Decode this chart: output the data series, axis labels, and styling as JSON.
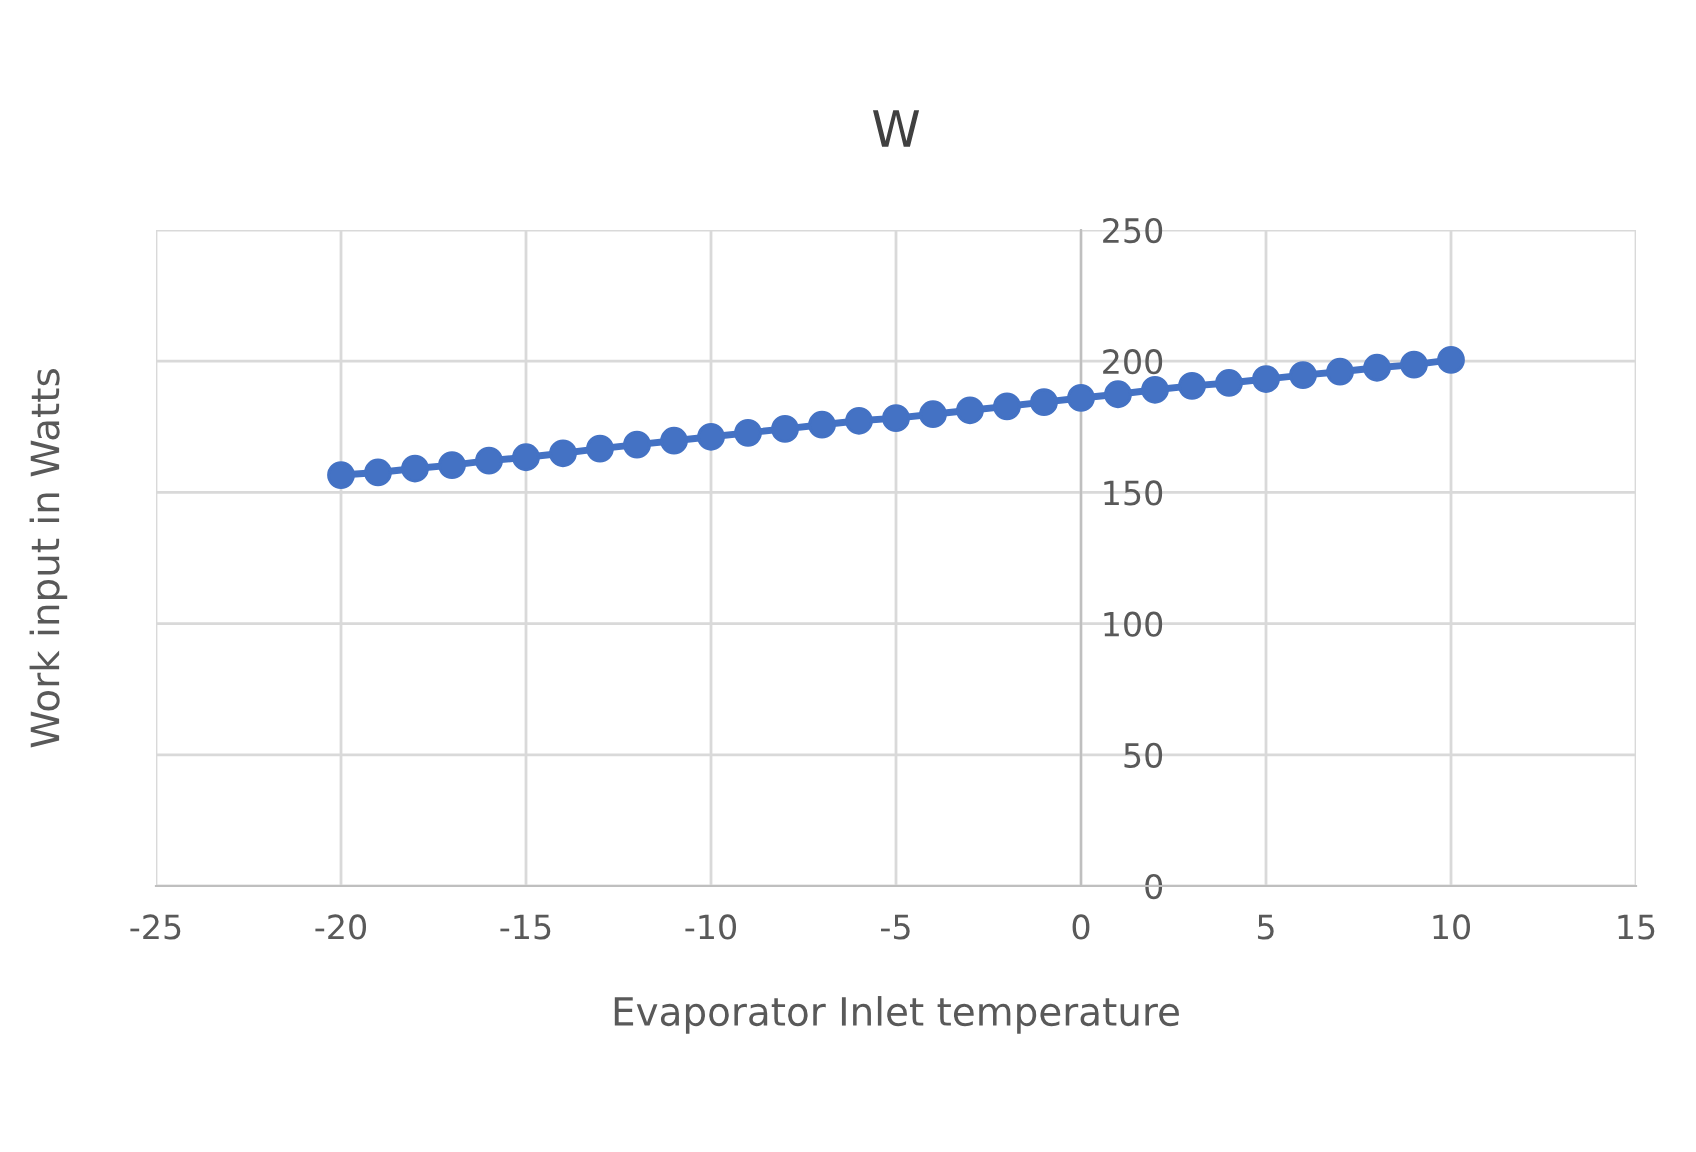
{
  "chart_data": {
    "type": "line",
    "title": "W",
    "xlabel": "Evaporator Inlet temperature",
    "ylabel": "Work input in Watts",
    "x": [
      -20,
      -19,
      -18,
      -17,
      -16,
      -15,
      -14,
      -13,
      -12,
      -11,
      -10,
      -9,
      -8,
      -7,
      -6,
      -5,
      -4,
      -3,
      -2,
      -1,
      0,
      1,
      2,
      3,
      4,
      5,
      6,
      7,
      8,
      9,
      10
    ],
    "series": [
      {
        "color": "#4472c4",
        "values": [
          156.6,
          157.6,
          159.1,
          160.4,
          162.1,
          163.4,
          164.9,
          166.7,
          168.2,
          169.7,
          171.2,
          172.7,
          174.2,
          175.8,
          177.3,
          178.3,
          179.8,
          181.3,
          182.8,
          184.4,
          186,
          187.4,
          189.1,
          190.6,
          191.7,
          193.2,
          194.7,
          196,
          197.5,
          198.7,
          200.5
        ]
      }
    ],
    "xlim": [
      -25,
      15
    ],
    "xticks": [
      -25,
      -20,
      -15,
      -10,
      -5,
      0,
      5,
      10,
      15
    ],
    "ylim": [
      0,
      250
    ],
    "yticks": [
      0,
      50,
      100,
      150,
      200,
      250
    ],
    "grid": true,
    "marker": "circle",
    "line_style": "solid",
    "legend": false
  }
}
